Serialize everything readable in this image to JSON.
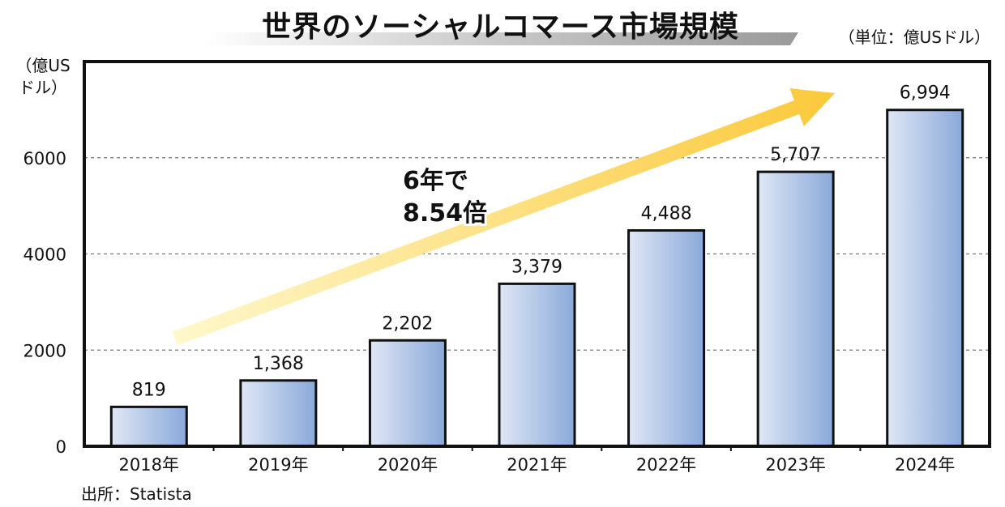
{
  "title": "世界のソーシャルコマース市場規模",
  "unit_note": "（単位：億USドル）",
  "source": "出所：Statista",
  "colors": {
    "bar_light": "#dfe7f5",
    "bar_dark": "#8aa9da",
    "arrow_light": "#fff8cc",
    "arrow_dark": "#fbc93a",
    "frame": "#111111",
    "grid": "#777777"
  },
  "chart_data": {
    "type": "bar",
    "title": "世界のソーシャルコマース市場規模",
    "ylabel_lines": [
      "（億US",
      "ドル）"
    ],
    "xlabel": "",
    "categories": [
      "2018年",
      "2019年",
      "2020年",
      "2021年",
      "2022年",
      "2023年",
      "2024年"
    ],
    "values": [
      819,
      1368,
      2202,
      3379,
      4488,
      5707,
      6994
    ],
    "value_labels": [
      "819",
      "1,368",
      "2,202",
      "3,379",
      "4,488",
      "5,707",
      "6,994"
    ],
    "ylim": [
      0,
      8000
    ],
    "yticks": [
      0,
      2000,
      4000,
      6000
    ],
    "ytick_labels": [
      "0",
      "2000",
      "4000",
      "6000"
    ],
    "grid": "horizontal-dashed",
    "annotation": {
      "lines": [
        "6年で",
        "8.54倍"
      ],
      "arrow": "rising from 2018 to 2024"
    }
  }
}
